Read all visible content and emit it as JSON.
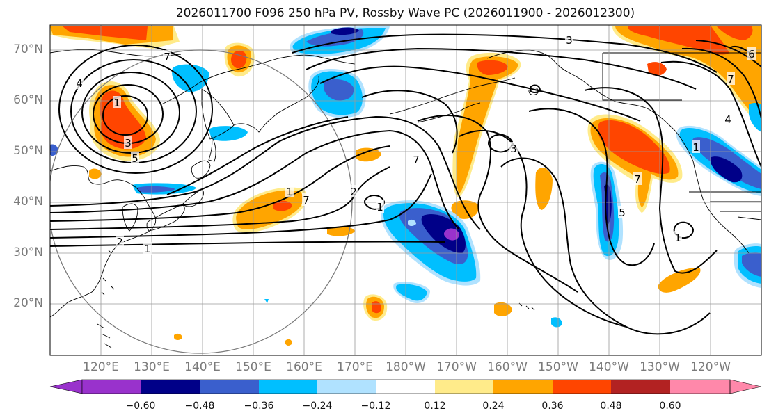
{
  "title": "2026011700 F096 250 hPa PV, Rossby Wave PC (2026011900 - 2026012300)",
  "lat_labels": [
    "70°N",
    "60°N",
    "50°N",
    "40°N",
    "30°N",
    "20°N"
  ],
  "lon_labels": [
    "120°E",
    "130°E",
    "140°E",
    "150°E",
    "160°E",
    "170°E",
    "180°W",
    "170°W",
    "160°W",
    "150°W",
    "140°W",
    "130°W",
    "120°W"
  ],
  "colorbar": {
    "ticks": [
      "−0.60",
      "−0.48",
      "−0.36",
      "−0.24",
      "−0.12",
      "0.12",
      "0.24",
      "0.36",
      "0.48",
      "0.60"
    ],
    "colors": [
      "#9932cc",
      "#000088",
      "#3a5fcd",
      "#00bfff",
      "#b0e2ff",
      "#ffffff",
      "#ffeb8a",
      "#ffa500",
      "#ff4500",
      "#b22222",
      "#ff88aa"
    ]
  },
  "contour_labels": [
    "3",
    "7",
    "7",
    "4",
    "1",
    "3",
    "5",
    "1",
    "7",
    "2",
    "2",
    "1",
    "1",
    "3",
    "7",
    "1",
    "5",
    "1",
    "7",
    "4",
    "6"
  ],
  "colors": {
    "pos_light": "#ffeb8a",
    "pos": "#ffa500",
    "pos_strong": "#ff4500",
    "neg_light": "#b0e2ff",
    "neg": "#00bfff",
    "neg_mid": "#3a5fcd",
    "neg_strong": "#000088",
    "neg_extreme": "#9932cc"
  }
}
